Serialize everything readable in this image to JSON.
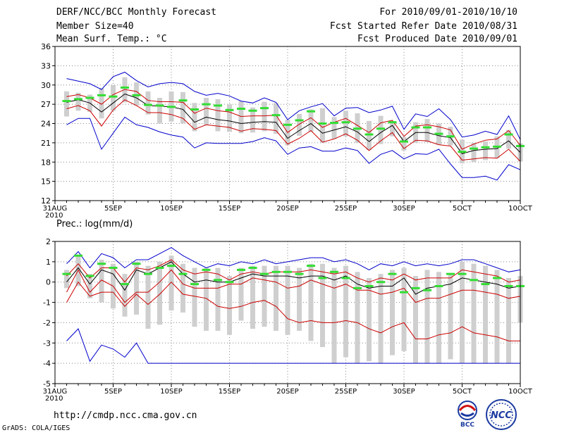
{
  "header": {
    "title": "DERF/NCC/BCC Monthly Forecast",
    "member_size": "Member Size=40",
    "variable": "Mean Surf. Temp.: °C",
    "forecast_for": "For 2010/09/01-2010/10/10",
    "refer_date": "Fcst Started Refer Date 2010/08/31",
    "produced_date": "Fcst Produced Date 2010/09/01"
  },
  "footer": {
    "url": "http://cmdp.ncc.cma.gov.cn",
    "grads": "GrADS: COLA/IGES",
    "logo_bcc": "BCC",
    "logo_ncc": "NCC"
  },
  "colors": {
    "envelope": "#0000cc",
    "spread": "#cc0000",
    "mean": "#000000",
    "box": "#cfcfcf",
    "median": "#33dd33"
  },
  "chart_data": [
    {
      "type": "line",
      "title": "Mean Surf. Temp.: °C",
      "ylabel": "°C",
      "ylim": [
        12,
        36
      ],
      "yticks": [
        12,
        15,
        18,
        21,
        24,
        27,
        30,
        33,
        36
      ],
      "xlim": [
        0,
        40
      ],
      "xtick_pos": [
        0,
        5,
        10,
        15,
        20,
        25,
        30,
        35,
        40
      ],
      "xtick_labels": [
        "31AUG",
        "5SEP",
        "10SEP",
        "15SEP",
        "20SEP",
        "25SEP",
        "30SEP",
        "5OCT",
        "10OCT"
      ],
      "year_label": "2010",
      "x": [
        0,
        1,
        2,
        3,
        4,
        5,
        6,
        7,
        8,
        9,
        10,
        11,
        12,
        13,
        14,
        15,
        16,
        17,
        18,
        19,
        20,
        21,
        22,
        23,
        24,
        25,
        26,
        27,
        28,
        29,
        30,
        31,
        32,
        33,
        34,
        35,
        36,
        37,
        38,
        39,
        40
      ],
      "series": [
        {
          "name": "max",
          "values": [
            null,
            31.0,
            30.6,
            30.2,
            29.3,
            31.3,
            32.0,
            30.7,
            29.7,
            30.2,
            30.4,
            30.2,
            29.0,
            28.4,
            28.7,
            28.3,
            27.5,
            27.2,
            28.0,
            27.3,
            24.6,
            26.0,
            26.6,
            27.1,
            25.2,
            26.4,
            26.5,
            25.7,
            26.1,
            26.7,
            23.1,
            25.5,
            25.1,
            26.3,
            24.6,
            21.9,
            22.2,
            22.8,
            22.3,
            25.2,
            21.5
          ]
        },
        {
          "name": "upper",
          "values": [
            null,
            28.2,
            28.5,
            28.0,
            27.0,
            28.5,
            29.3,
            29.0,
            27.6,
            27.4,
            27.4,
            27.3,
            25.6,
            26.4,
            26.0,
            25.8,
            25.1,
            25.2,
            25.2,
            25.3,
            22.6,
            23.9,
            24.9,
            23.4,
            24.2,
            24.8,
            23.7,
            22.6,
            24.1,
            24.5,
            22.0,
            23.6,
            23.8,
            23.5,
            23.0,
            20.0,
            20.8,
            21.4,
            21.6,
            22.9,
            20.6
          ]
        },
        {
          "name": "mean",
          "values": [
            null,
            27.3,
            27.7,
            27.2,
            25.8,
            27.2,
            28.6,
            28.0,
            26.8,
            26.7,
            26.6,
            26.2,
            24.2,
            25.0,
            24.6,
            24.4,
            24.0,
            24.2,
            24.3,
            24.2,
            21.7,
            22.9,
            24.0,
            22.5,
            23.0,
            23.5,
            22.7,
            21.2,
            22.6,
            23.7,
            21.2,
            22.6,
            22.6,
            22.1,
            21.8,
            19.3,
            19.8,
            20.0,
            20.1,
            21.3,
            19.5
          ]
        },
        {
          "name": "lower",
          "values": [
            null,
            26.3,
            26.8,
            26.0,
            23.6,
            26.1,
            27.7,
            26.8,
            25.7,
            25.7,
            25.4,
            24.8,
            23.1,
            23.8,
            23.6,
            23.4,
            22.8,
            23.2,
            23.1,
            22.9,
            20.8,
            21.7,
            22.9,
            21.1,
            21.6,
            22.4,
            21.4,
            19.8,
            21.3,
            22.6,
            20.1,
            21.4,
            21.3,
            20.7,
            20.5,
            18.3,
            18.5,
            18.7,
            18.6,
            20.0,
            18.1
          ]
        },
        {
          "name": "min",
          "values": [
            null,
            23.8,
            24.8,
            24.8,
            20.0,
            22.5,
            25.0,
            23.8,
            23.4,
            22.7,
            22.2,
            21.9,
            20.2,
            21.0,
            20.9,
            20.9,
            20.9,
            21.2,
            21.8,
            21.3,
            19.2,
            20.2,
            20.4,
            19.7,
            19.7,
            20.2,
            19.8,
            17.8,
            19.2,
            19.8,
            18.5,
            19.3,
            19.2,
            20.0,
            17.7,
            15.6,
            15.6,
            15.8,
            15.2,
            17.6,
            16.8
          ]
        },
        {
          "name": "box_top",
          "values": [
            null,
            29.0,
            28.8,
            28.5,
            29.5,
            30.0,
            31.2,
            30.4,
            29.0,
            28.0,
            29.0,
            28.9,
            27.2,
            28.0,
            27.8,
            27.0,
            27.5,
            26.5,
            27.4,
            27.2,
            24.6,
            25.5,
            26.2,
            26.4,
            25.0,
            26.0,
            25.6,
            24.4,
            25.2,
            24.4,
            21.9,
            24.2,
            24.7,
            24.0,
            23.5,
            21.5,
            21.0,
            21.2,
            22.0,
            23.0,
            20.9
          ]
        },
        {
          "name": "box_bottom",
          "values": [
            null,
            25.1,
            26.0,
            25.8,
            24.8,
            26.0,
            27.3,
            26.8,
            25.4,
            24.0,
            24.3,
            24.0,
            22.8,
            23.8,
            22.8,
            22.7,
            22.5,
            22.6,
            22.8,
            22.4,
            20.6,
            22.1,
            22.7,
            21.0,
            21.6,
            22.0,
            21.0,
            19.9,
            20.8,
            22.0,
            19.8,
            21.0,
            21.1,
            20.7,
            20.6,
            17.8,
            18.0,
            18.3,
            18.6,
            20.1,
            18.1
          ]
        },
        {
          "name": "median",
          "values": [
            null,
            27.5,
            27.8,
            28.0,
            28.4,
            28.2,
            29.6,
            28.4,
            26.9,
            26.8,
            26.6,
            27.6,
            26.2,
            27.0,
            26.8,
            26.1,
            26.3,
            26.0,
            26.4,
            25.3,
            23.8,
            24.5,
            25.9,
            24.0,
            24.1,
            24.2,
            23.2,
            22.3,
            23.2,
            24.2,
            21.2,
            23.4,
            23.4,
            22.4,
            22.0,
            19.6,
            20.1,
            20.3,
            20.4,
            22.3,
            20.5
          ]
        }
      ]
    },
    {
      "type": "line",
      "title": "Prec.: log(mm/d)",
      "ylabel": "log(mm/d)",
      "ylim": [
        -5,
        2
      ],
      "yticks": [
        -5,
        -4,
        -3,
        -2,
        -1,
        0,
        1,
        2
      ],
      "xlim": [
        0,
        40
      ],
      "xtick_pos": [
        0,
        5,
        10,
        15,
        20,
        25,
        30,
        35,
        40
      ],
      "xtick_labels": [
        "31AUG",
        "5SEP",
        "10SEP",
        "15SEP",
        "20SEP",
        "25SEP",
        "30SEP",
        "5OCT",
        "10OCT"
      ],
      "year_label": "2010",
      "x": [
        0,
        1,
        2,
        3,
        4,
        5,
        6,
        7,
        8,
        9,
        10,
        11,
        12,
        13,
        14,
        15,
        16,
        17,
        18,
        19,
        20,
        21,
        22,
        23,
        24,
        25,
        26,
        27,
        28,
        29,
        30,
        31,
        32,
        33,
        34,
        35,
        36,
        37,
        38,
        39,
        40
      ],
      "series": [
        {
          "name": "max",
          "values": [
            null,
            0.9,
            1.5,
            0.7,
            1.4,
            1.2,
            0.7,
            1.1,
            1.1,
            1.4,
            1.7,
            1.3,
            1.0,
            0.7,
            0.9,
            0.8,
            1.0,
            0.9,
            1.1,
            0.9,
            1.0,
            1.1,
            1.2,
            1.2,
            1.0,
            1.1,
            0.9,
            0.6,
            0.9,
            0.8,
            1.0,
            0.8,
            0.9,
            0.8,
            0.9,
            1.1,
            1.1,
            0.9,
            0.7,
            0.5,
            0.6
          ]
        },
        {
          "name": "upper",
          "values": [
            null,
            0.3,
            0.9,
            0.2,
            0.7,
            0.7,
            0.0,
            0.7,
            0.6,
            0.8,
            1.1,
            0.6,
            0.4,
            0.5,
            0.4,
            0.1,
            0.4,
            0.5,
            0.4,
            0.5,
            0.5,
            0.5,
            0.6,
            0.5,
            0.4,
            0.5,
            0.2,
            0.0,
            0.2,
            0.1,
            0.4,
            0.1,
            0.2,
            0.2,
            0.2,
            0.6,
            0.5,
            0.4,
            0.3,
            0.0,
            0.1
          ]
        },
        {
          "name": "mean",
          "values": [
            null,
            0.0,
            0.7,
            -0.1,
            0.6,
            0.4,
            -0.4,
            0.6,
            0.4,
            0.7,
            1.0,
            0.4,
            0.0,
            0.1,
            0.0,
            0.0,
            0.2,
            0.4,
            0.3,
            0.3,
            0.3,
            0.2,
            0.3,
            0.3,
            0.1,
            0.3,
            -0.1,
            -0.3,
            -0.2,
            -0.2,
            0.2,
            -0.6,
            -0.3,
            -0.2,
            -0.1,
            0.2,
            0.1,
            0.0,
            -0.1,
            -0.3,
            -0.2
          ]
        },
        {
          "name": "lower",
          "values": [
            null,
            -0.5,
            0.6,
            -0.5,
            0.1,
            -0.2,
            -1.0,
            -0.5,
            -0.5,
            0.0,
            0.6,
            -0.1,
            -0.3,
            -0.3,
            -0.3,
            -0.1,
            -0.1,
            0.2,
            0.1,
            0.0,
            -0.3,
            -0.2,
            0.1,
            -0.1,
            -0.3,
            -0.1,
            -0.4,
            -0.4,
            -0.6,
            -0.5,
            -0.3,
            -1.0,
            -0.8,
            -0.8,
            -0.6,
            -0.4,
            -0.4,
            -0.5,
            -0.6,
            -0.8,
            -0.7
          ]
        },
        {
          "name": "spread_low",
          "values": [
            null,
            -1.0,
            0.0,
            -0.7,
            -0.5,
            -0.5,
            -1.2,
            -0.6,
            -1.1,
            -0.6,
            0.0,
            -0.6,
            -0.7,
            -0.8,
            -1.2,
            -1.3,
            -1.2,
            -1.0,
            -0.9,
            -1.2,
            -1.8,
            -2.0,
            -1.9,
            -2.0,
            -2.0,
            -1.9,
            -2.0,
            -2.3,
            -2.5,
            -2.2,
            -2.0,
            -2.8,
            -2.8,
            -2.6,
            -2.5,
            -2.2,
            -2.5,
            -2.6,
            -2.7,
            -2.9,
            -2.9
          ]
        },
        {
          "name": "min",
          "values": [
            null,
            -2.9,
            -2.3,
            -3.9,
            -3.1,
            -3.3,
            -3.7,
            -3.0,
            -4.0,
            -4.0,
            -4.0,
            -4.0,
            -4.0,
            -4.0,
            -4.0,
            -4.0,
            -4.0,
            -4.0,
            -4.0,
            -4.0,
            -4.0,
            -4.0,
            -4.0,
            -4.0,
            -4.0,
            -4.0,
            -4.0,
            -4.0,
            -4.0,
            -4.0,
            -4.0,
            -4.0,
            -4.0,
            -4.0,
            -4.0,
            -4.0,
            -4.0,
            -4.0,
            -4.0,
            -4.0,
            -4.0
          ]
        },
        {
          "name": "box_top",
          "values": [
            null,
            0.6,
            1.3,
            0.4,
            1.1,
            0.9,
            0.4,
            1.0,
            0.8,
            1.0,
            1.3,
            0.9,
            0.7,
            0.7,
            0.7,
            0.3,
            0.7,
            0.8,
            0.8,
            0.8,
            0.8,
            0.7,
            0.9,
            0.9,
            0.7,
            0.8,
            0.5,
            0.2,
            0.4,
            0.6,
            0.7,
            0.3,
            0.6,
            0.5,
            0.4,
            1.0,
            0.9,
            0.8,
            0.6,
            0.2,
            0.3
          ]
        },
        {
          "name": "box_bottom",
          "values": [
            null,
            -0.3,
            -0.2,
            -0.8,
            -1.0,
            -1.3,
            -1.7,
            -1.6,
            -2.3,
            -2.1,
            -1.4,
            -1.5,
            -2.2,
            -2.4,
            -2.4,
            -2.6,
            -1.9,
            -2.3,
            -2.2,
            -2.4,
            -2.6,
            -2.4,
            -2.9,
            -3.2,
            -4.0,
            -3.7,
            -4.0,
            -3.9,
            -4.0,
            -3.6,
            -3.4,
            -4.0,
            -4.0,
            -4.0,
            -3.8,
            -4.0,
            -4.0,
            -4.0,
            -4.0,
            -4.0,
            -2.0
          ]
        },
        {
          "name": "median",
          "values": [
            null,
            0.4,
            1.3,
            0.3,
            0.9,
            0.7,
            -0.1,
            0.9,
            0.4,
            0.7,
            0.8,
            0.4,
            -0.1,
            0.6,
            0.1,
            0.0,
            0.6,
            0.7,
            0.4,
            0.5,
            0.5,
            0.4,
            0.8,
            0.2,
            0.5,
            0.2,
            -0.3,
            -0.2,
            0.0,
            0.4,
            -0.5,
            -0.3,
            -0.4,
            -0.2,
            0.4,
            0.4,
            0.1,
            -0.1,
            0.2,
            -0.2,
            -0.2
          ]
        }
      ]
    }
  ]
}
